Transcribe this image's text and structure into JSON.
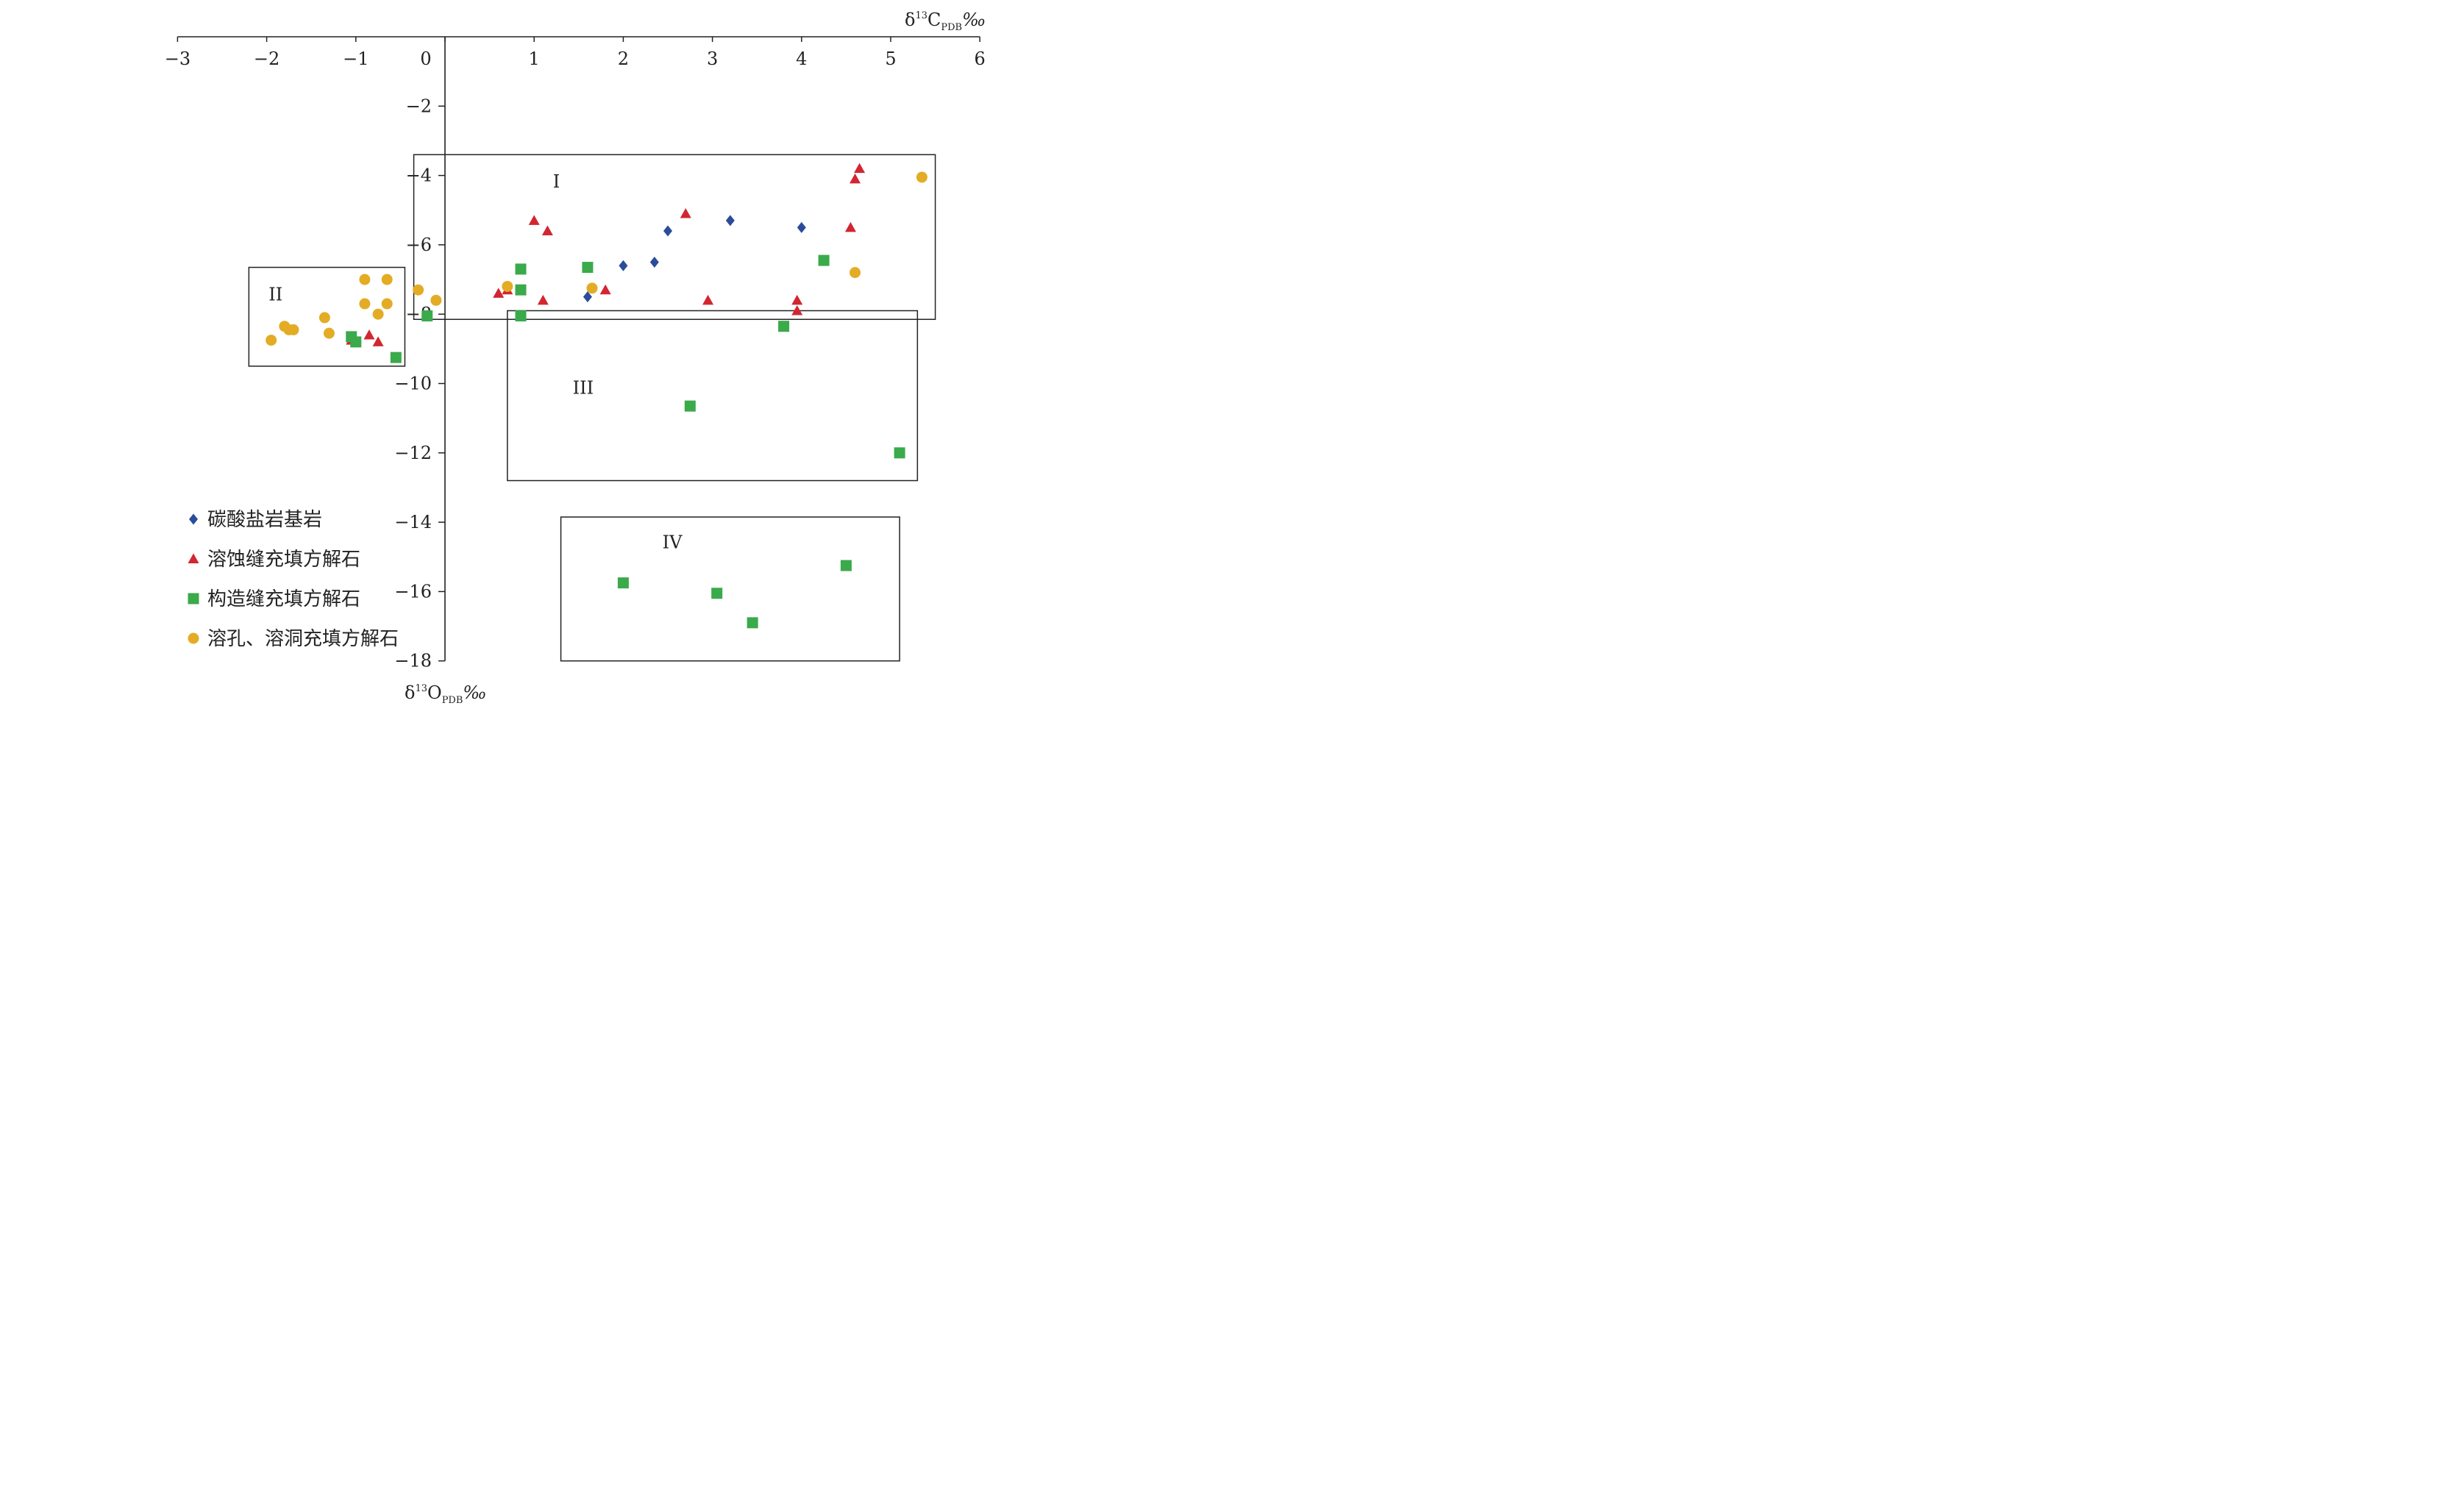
{
  "chart_data": {
    "type": "scatter",
    "xlabel": {
      "base": "δ",
      "sup": "13",
      "main": "C",
      "sub": "PDB",
      "unit": "‰"
    },
    "ylabel": {
      "base": "δ",
      "sup": "13",
      "main": "O",
      "sub": "PDB",
      "unit": "‰"
    },
    "xlim": [
      -3,
      6
    ],
    "ylim": [
      -18,
      0
    ],
    "x_ticks": [
      -3,
      -2,
      -1,
      0,
      1,
      2,
      3,
      4,
      5,
      6
    ],
    "x_tick_labels": [
      "−3",
      "−2",
      "−1",
      "0",
      "1",
      "2",
      "3",
      "4",
      "5",
      "6"
    ],
    "y_ticks": [
      -2,
      -4,
      -6,
      -8,
      -10,
      -12,
      -14,
      -16,
      -18
    ],
    "y_tick_labels": [
      "−2",
      "−4",
      "−6",
      "−8",
      "−10",
      "−12",
      "−14",
      "−16",
      "−18"
    ],
    "x_axis_position": "top",
    "y_axis_crosses_at_x": 0,
    "grid": false,
    "legend_position": "bottom-left",
    "series": [
      {
        "name": "碳酸盐岩基岩",
        "marker": "diamond",
        "color": "#2B4C9B",
        "points": [
          [
            1.6,
            -7.5
          ],
          [
            2.0,
            -6.6
          ],
          [
            2.35,
            -6.5
          ],
          [
            2.5,
            -5.6
          ],
          [
            3.2,
            -5.3
          ],
          [
            4.0,
            -5.5
          ]
        ]
      },
      {
        "name": "溶蚀缝充填方解石",
        "marker": "triangle",
        "color": "#D22630",
        "points": [
          [
            0.6,
            -7.4
          ],
          [
            0.7,
            -7.3
          ],
          [
            1.0,
            -5.3
          ],
          [
            1.1,
            -7.6
          ],
          [
            1.15,
            -5.6
          ],
          [
            1.8,
            -7.3
          ],
          [
            2.7,
            -5.1
          ],
          [
            2.95,
            -7.6
          ],
          [
            3.95,
            -7.9
          ],
          [
            3.95,
            -7.6
          ],
          [
            4.55,
            -5.5
          ],
          [
            4.6,
            -4.1
          ],
          [
            4.65,
            -3.8
          ],
          [
            -1.05,
            -8.75
          ],
          [
            -0.85,
            -8.6
          ],
          [
            -0.75,
            -8.8
          ]
        ]
      },
      {
        "name": "构造缝充填方解石",
        "marker": "square",
        "color": "#3AAA4A",
        "points": [
          [
            0.85,
            -6.7
          ],
          [
            0.85,
            -7.3
          ],
          [
            0.85,
            -8.05
          ],
          [
            1.6,
            -6.65
          ],
          [
            3.8,
            -8.35
          ],
          [
            4.25,
            -6.45
          ],
          [
            2.75,
            -10.65
          ],
          [
            5.1,
            -12.0
          ],
          [
            2.0,
            -15.75
          ],
          [
            3.05,
            -16.05
          ],
          [
            3.45,
            -16.9
          ],
          [
            4.5,
            -15.25
          ],
          [
            -1.05,
            -8.65
          ],
          [
            -1.0,
            -8.8
          ],
          [
            -0.55,
            -9.25
          ],
          [
            -0.2,
            -8.05
          ]
        ]
      },
      {
        "name": "溶孔、溶洞充填方解石",
        "marker": "circle",
        "color": "#E3AC24",
        "points": [
          [
            0.7,
            -7.2
          ],
          [
            1.65,
            -7.25
          ],
          [
            4.6,
            -6.8
          ],
          [
            5.35,
            -4.05
          ],
          [
            -0.3,
            -7.3
          ],
          [
            -0.1,
            -7.6
          ],
          [
            -0.9,
            -7.0
          ],
          [
            -0.65,
            -7.0
          ],
          [
            -0.9,
            -7.7
          ],
          [
            -0.65,
            -7.7
          ],
          [
            -0.75,
            -8.0
          ],
          [
            -1.35,
            -8.1
          ],
          [
            -1.3,
            -8.55
          ],
          [
            -1.8,
            -8.35
          ],
          [
            -1.75,
            -8.45
          ],
          [
            -1.7,
            -8.45
          ],
          [
            -1.95,
            -8.75
          ]
        ]
      }
    ],
    "regions": [
      {
        "label": "I",
        "x": [
          -0.35,
          5.5
        ],
        "y": [
          -8.15,
          -3.4
        ],
        "label_at": [
          1.25,
          -4.35
        ]
      },
      {
        "label": "II",
        "x": [
          -2.2,
          -0.45
        ],
        "y": [
          -9.5,
          -6.65
        ],
        "label_at": [
          -1.9,
          -7.6
        ]
      },
      {
        "label": "III",
        "x": [
          0.7,
          5.3
        ],
        "y": [
          -12.8,
          -7.9
        ],
        "label_at": [
          1.55,
          -10.3
        ]
      },
      {
        "label": "IV",
        "x": [
          1.3,
          5.1
        ],
        "y": [
          -18.0,
          -13.85
        ],
        "label_at": [
          2.55,
          -14.75
        ]
      }
    ]
  }
}
